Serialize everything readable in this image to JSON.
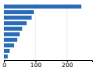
{
  "chart_data": {
    "type": "bar",
    "orientation": "horizontal",
    "categories": [
      null,
      null,
      null,
      null,
      null,
      null,
      null,
      null,
      null,
      null
    ],
    "values": [
      246,
      95,
      88,
      72,
      58,
      50,
      42,
      32,
      18,
      12
    ],
    "color": "#2b6cb8",
    "xlim": [
      0,
      280
    ],
    "xticks": [
      0,
      100,
      200
    ],
    "grid": true,
    "tick_labels": "x"
  }
}
